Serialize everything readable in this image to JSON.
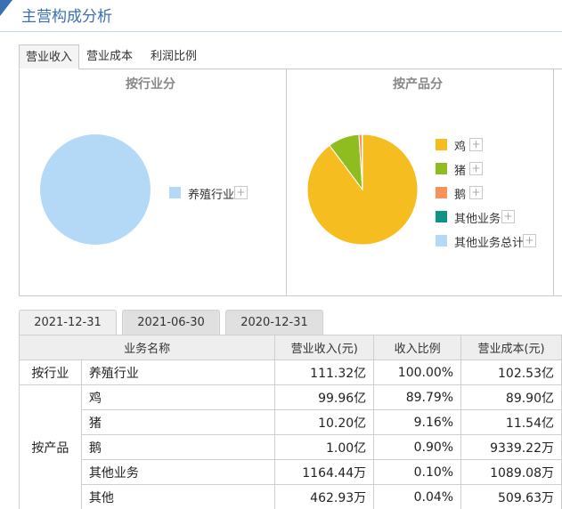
{
  "header": {
    "title": "主营构成分析"
  },
  "top_tabs": [
    {
      "label": "营业收入",
      "active": true
    },
    {
      "label": "营业成本",
      "active": false
    },
    {
      "label": "利润比例",
      "active": false
    }
  ],
  "charts": [
    {
      "panel_title": "按行业分",
      "chart_data": {
        "type": "pie",
        "title": "按行业分",
        "labels": [
          "养殖行业"
        ],
        "values": [
          100.0
        ],
        "colors": [
          "#b3d9f6"
        ]
      }
    },
    {
      "panel_title": "按产品分",
      "chart_data": {
        "type": "pie",
        "title": "按产品分",
        "labels": [
          "鸡",
          "猪",
          "鹅",
          "其他业务",
          "其他业务总计"
        ],
        "values": [
          89.79,
          9.16,
          0.9,
          0.1,
          0.04
        ],
        "colors": [
          "#f5bd1f",
          "#8fbc1e",
          "#f7935a",
          "#0f9287",
          "#b3d9f6"
        ]
      }
    }
  ],
  "date_tabs": [
    {
      "label": "2021-12-31",
      "active": true
    },
    {
      "label": "2021-06-30",
      "active": false
    },
    {
      "label": "2020-12-31",
      "active": false
    }
  ],
  "table": {
    "headers": [
      "业务名称",
      "营业收入(元)",
      "收入比例",
      "营业成本(元)"
    ],
    "rows": [
      {
        "category": "按行业",
        "name": "养殖行业",
        "revenue": "111.32亿",
        "ratio": "100.00%",
        "cost": "102.53亿"
      },
      {
        "category": "按产品",
        "name": "鸡",
        "revenue": "99.96亿",
        "ratio": "89.79%",
        "cost": "89.90亿"
      },
      {
        "category": "",
        "name": "猪",
        "revenue": "10.20亿",
        "ratio": "9.16%",
        "cost": "11.54亿"
      },
      {
        "category": "",
        "name": "鹅",
        "revenue": "1.00亿",
        "ratio": "0.90%",
        "cost": "9339.22万"
      },
      {
        "category": "",
        "name": "其他业务",
        "revenue": "1164.44万",
        "ratio": "0.10%",
        "cost": "1089.08万"
      },
      {
        "category": "",
        "name": "其他",
        "revenue": "462.93万",
        "ratio": "0.04%",
        "cost": "509.63万"
      }
    ]
  }
}
